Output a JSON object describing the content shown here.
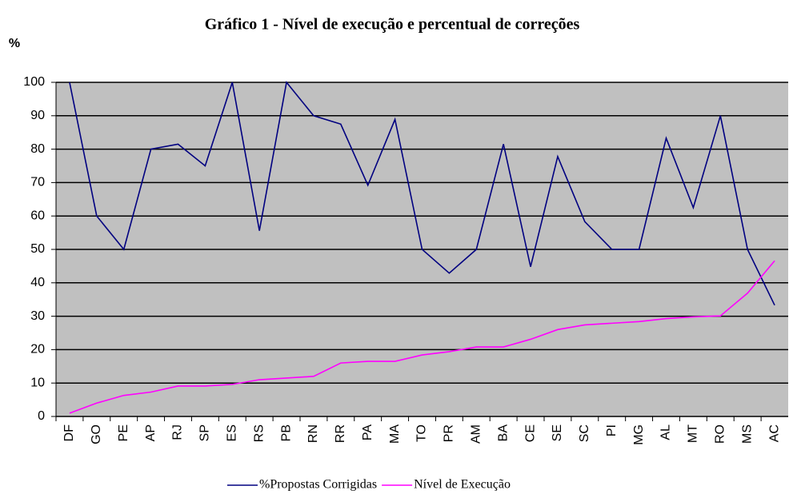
{
  "chart_data": {
    "type": "line",
    "title": "Gráfico 1 - Nível de execução e percentual de correções",
    "y_label": "%",
    "categories": [
      "DF",
      "GO",
      "PE",
      "AP",
      "RJ",
      "SP",
      "ES",
      "RS",
      "PB",
      "RN",
      "RR",
      "PA",
      "MA",
      "TO",
      "PR",
      "AM",
      "BA",
      "CE",
      "SE",
      "SC",
      "PI",
      "MG",
      "AL",
      "MT",
      "RO",
      "MS",
      "AC"
    ],
    "series": [
      {
        "name": "%Propostas Corrigidas",
        "color": "#000080",
        "values": [
          100,
          60,
          50,
          80,
          81.5,
          75,
          100,
          55.6,
          100,
          90,
          87.5,
          69.2,
          88.9,
          50,
          42.9,
          50,
          81.5,
          44.8,
          77.8,
          58.3,
          50,
          50,
          83.3,
          62.5,
          90,
          50,
          33.3
        ]
      },
      {
        "name": "Nível de Execução",
        "color": "#ff00ff",
        "values": [
          1,
          4,
          6.3,
          7.3,
          9.1,
          9.1,
          9.6,
          11,
          11.5,
          12,
          16,
          16.5,
          16.5,
          18.4,
          19.4,
          20.8,
          20.8,
          23.1,
          26,
          27.4,
          27.9,
          28.4,
          29.3,
          29.8,
          30.1,
          36.9,
          46.6
        ]
      }
    ],
    "ylim": [
      0,
      100
    ],
    "yticks": [
      0,
      10,
      20,
      30,
      40,
      50,
      60,
      70,
      80,
      90,
      100
    ],
    "grid": true,
    "legend": "bottom",
    "plot_background": "#c0c0c0"
  }
}
